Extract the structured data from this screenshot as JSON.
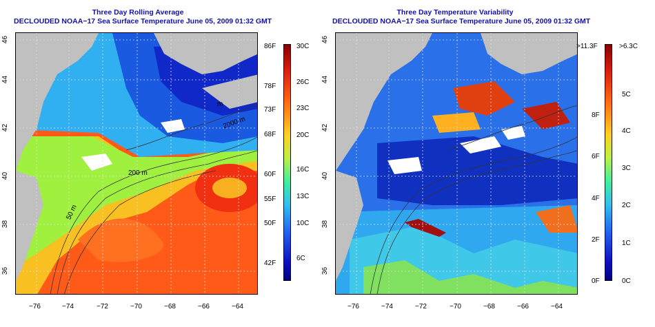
{
  "left_panel": {
    "title_line1": "Three Day Rolling Average",
    "title_line2": "DECLOUDED NOAA−17 Sea Surface Temperature June 05, 2009 01:32 GMT",
    "lat_labels": [
      "46",
      "44",
      "42",
      "40",
      "38",
      "36"
    ],
    "lon_labels": [
      "−76",
      "−74",
      "−72",
      "−70",
      "−68",
      "−66",
      "−64"
    ],
    "contour_labels": [
      "2000 m",
      "200 m",
      "50 m",
      "m"
    ],
    "colorbar": {
      "fahrenheit": [
        "86F",
        "78F",
        "73F",
        "68F",
        "60F",
        "55F",
        "50F",
        "42F"
      ],
      "celsius": [
        "30C",
        "26C",
        "23C",
        "20C",
        "16C",
        "13C",
        "10C",
        "6C"
      ]
    }
  },
  "right_panel": {
    "title_line1": "Three Day Temperature Variability",
    "title_line2": "DECLOUDED NOAA−17 Sea Surface Temperature June 05, 2009 01:32 GMT",
    "lat_labels": [
      "46",
      "44",
      "42",
      "40",
      "38",
      "36"
    ],
    "lon_labels": [
      "−76",
      "−74",
      "−72",
      "−70",
      "−68",
      "−66",
      "−64"
    ],
    "colorbar": {
      "fahrenheit": [
        ">11.3F",
        "8F",
        "6F",
        "4F",
        "2F",
        "0F"
      ],
      "celsius": [
        ">6.3C",
        "5C",
        "4C",
        "3C",
        "2C",
        "1C",
        "0C"
      ]
    }
  },
  "colors": {
    "title": "#1111aa",
    "land": "#c0c0c0",
    "warm": "#ff4a10",
    "cold": "#1030d0"
  }
}
